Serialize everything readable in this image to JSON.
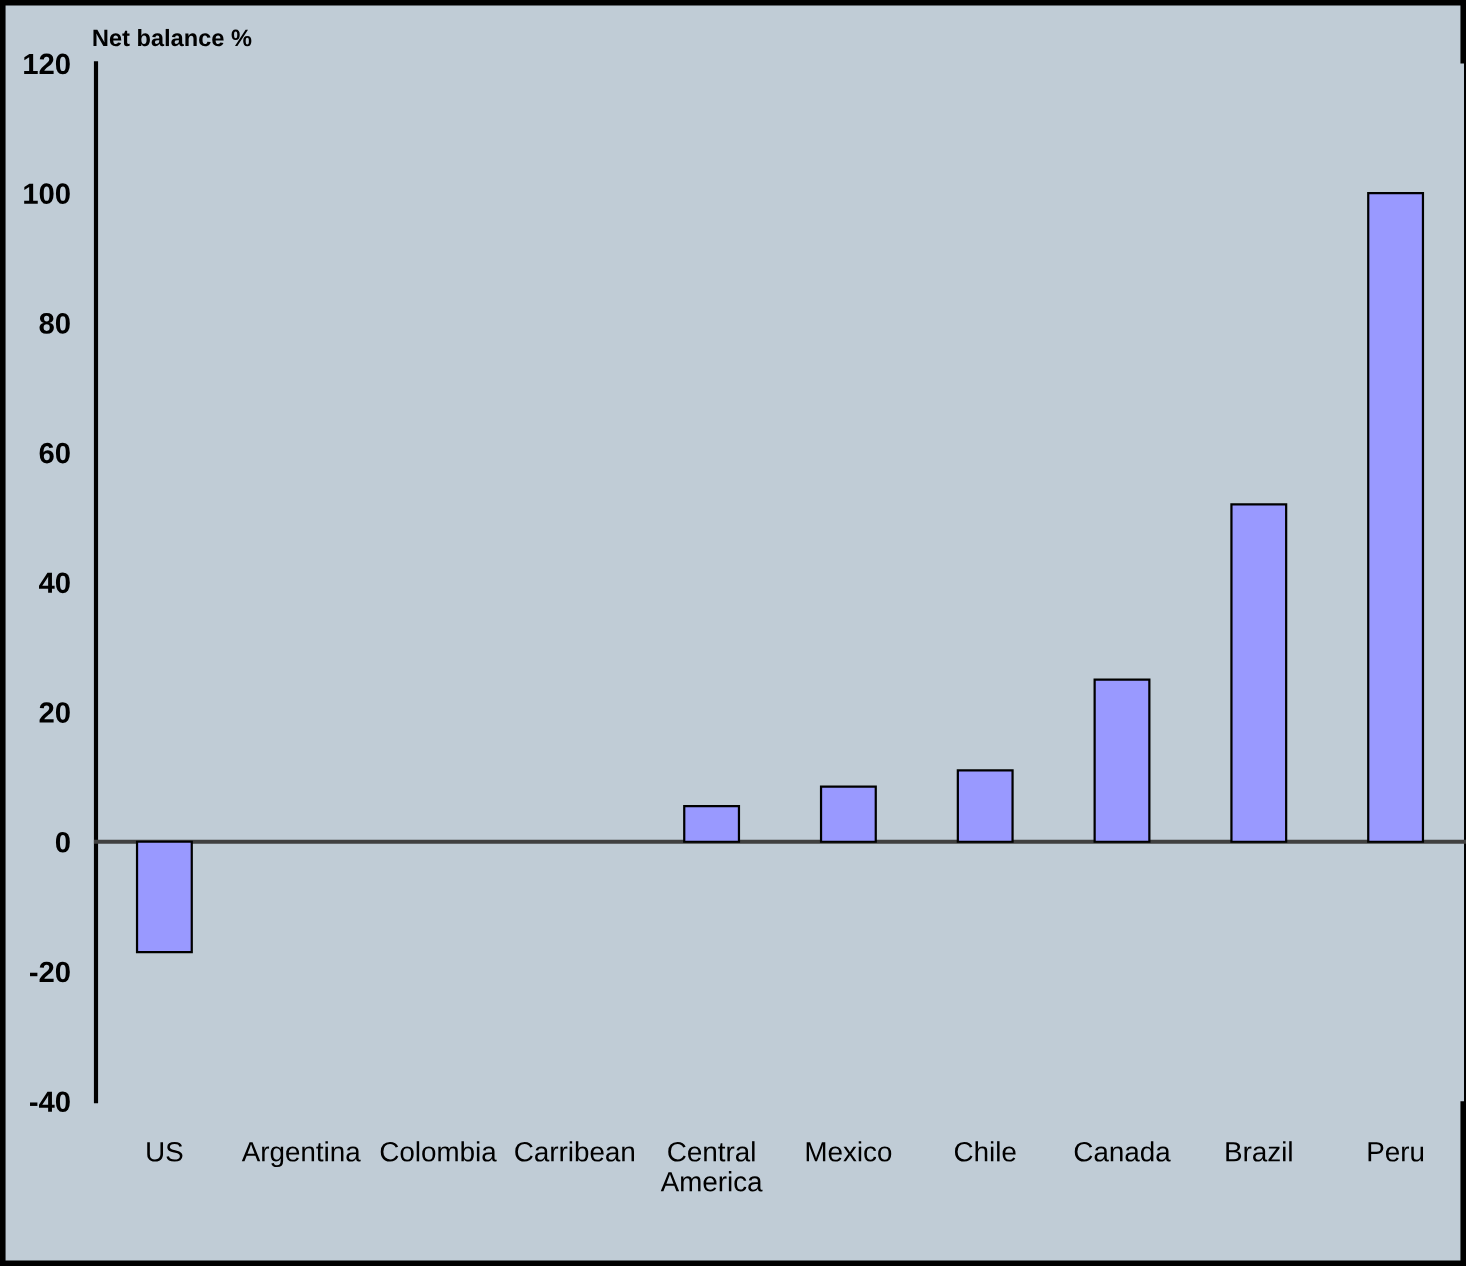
{
  "chart_data": {
    "type": "bar",
    "ylabel": "Net balance %",
    "categories": [
      "US",
      "Argentina",
      "Colombia",
      "Carribean",
      "Central\nAmerica",
      "Mexico",
      "Chile",
      "Canada",
      "Brazil",
      "Peru"
    ],
    "values": [
      -17,
      null,
      null,
      null,
      5.5,
      8.5,
      11,
      25,
      52,
      100
    ],
    "color": "#9999ff",
    "ylim": [
      -40,
      120
    ],
    "yticks": [
      -40,
      -20,
      0,
      20,
      40,
      60,
      80,
      100,
      120
    ]
  }
}
